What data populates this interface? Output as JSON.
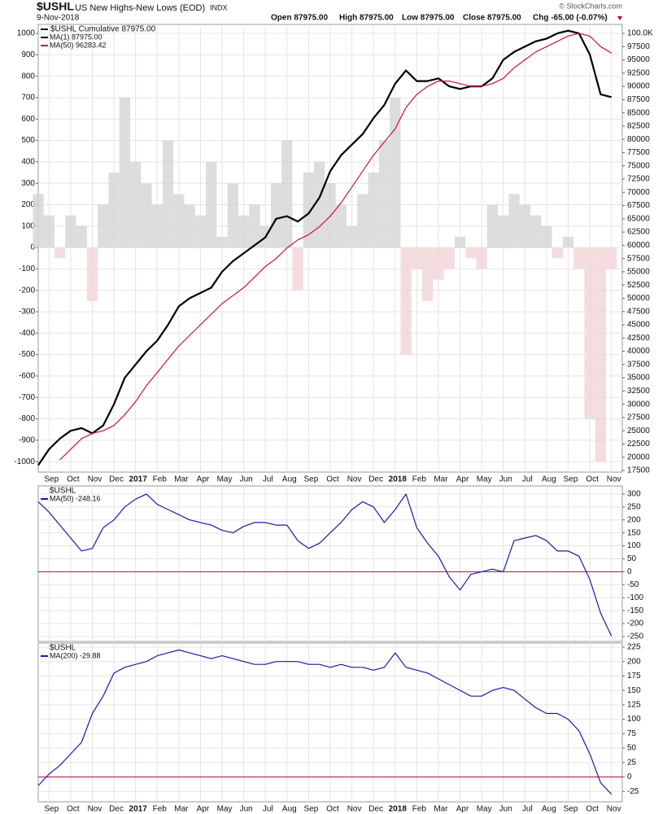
{
  "header": {
    "symbol": "$USHL",
    "name": "US New Highs-New Lows (EOD)",
    "exchange": "INDX",
    "date": "9-Nov-2018",
    "open": "Open 87975.00",
    "high": "High 87975.00",
    "low": "Low 87975.00",
    "close": "Close 87975.00",
    "change": "Chg -65.00 (-0.07%)",
    "source": "© StockCharts.com"
  },
  "chart_data": [
    {
      "type": "line",
      "label": "$USHL Cumulative 87975.00",
      "categories": [
        null,
        "Sep",
        null,
        "Oct",
        null,
        "Nov",
        null,
        "Dec",
        null,
        "2017",
        null,
        "Feb",
        null,
        "Mar",
        null,
        "Apr",
        null,
        "May",
        null,
        "Jun",
        null,
        "Jul",
        null,
        "Aug",
        null,
        "Sep",
        null,
        "Oct",
        null,
        "Nov",
        null,
        "Dec",
        null,
        "2018",
        null,
        "Feb",
        null,
        "Mar",
        null,
        "Apr",
        null,
        "May",
        null,
        "Jun",
        null,
        "Jul",
        null,
        "Aug",
        null,
        "Sep",
        null,
        "Oct",
        null,
        "Nov",
        null
      ],
      "histogram": {
        "color": "#d4d4d4",
        "negative_color": "#f3d3d6",
        "values": [
          250,
          150,
          -50,
          150,
          100,
          -250,
          200,
          350,
          700,
          400,
          300,
          200,
          500,
          250,
          200,
          150,
          400,
          50,
          300,
          150,
          200,
          100,
          300,
          500,
          -200,
          350,
          400,
          300,
          200,
          100,
          250,
          350,
          500,
          700,
          -500,
          -100,
          -250,
          -150,
          -100,
          50,
          -50,
          -100,
          200,
          150,
          250,
          200,
          150,
          100,
          -50,
          50,
          -100,
          -800,
          -1000,
          -100,
          null
        ]
      },
      "series": [
        {
          "name": "MA(1) 87975.00",
          "color": "#000000",
          "axis": "y2",
          "width": 2.2,
          "values": [
            18500,
            21500,
            23500,
            25000,
            25500,
            24500,
            26000,
            30000,
            35000,
            37500,
            40000,
            42000,
            45000,
            48500,
            50000,
            51000,
            52000,
            55000,
            57000,
            58500,
            60000,
            61500,
            65000,
            65500,
            64500,
            66000,
            69000,
            74000,
            77000,
            79000,
            81000,
            84000,
            86500,
            90500,
            93000,
            91000,
            91000,
            91500,
            90000,
            89500,
            90000,
            90000,
            91500,
            95000,
            96500,
            97500,
            98500,
            99000,
            100000,
            100500,
            100000,
            96000,
            88500,
            87975,
            null
          ]
        },
        {
          "name": "MA(50) 96283.42",
          "color": "#d0103a",
          "axis": "y2",
          "width": 1.2,
          "values": [
            null,
            null,
            19500,
            21500,
            23500,
            24500,
            25000,
            26000,
            28000,
            30500,
            33500,
            36000,
            38500,
            41000,
            43000,
            45000,
            47000,
            49000,
            50500,
            52000,
            54000,
            56000,
            57500,
            59500,
            61000,
            62000,
            63500,
            65500,
            68000,
            71000,
            74000,
            77000,
            79500,
            82000,
            86000,
            88500,
            90000,
            91000,
            91000,
            90500,
            90000,
            90000,
            90500,
            91500,
            93500,
            95000,
            96500,
            97500,
            98500,
            99500,
            100000,
            99500,
            97500,
            96283.42,
            null
          ]
        }
      ],
      "ylim": [
        -1049,
        1042
      ],
      "yticks": [
        -1000,
        -900,
        -800,
        -700,
        -600,
        -500,
        -400,
        -300,
        -200,
        -100,
        0,
        100,
        200,
        300,
        400,
        500,
        600,
        700,
        800,
        900,
        1000
      ],
      "y2lim": [
        17190,
        101690
      ],
      "y2ticks": [
        17500,
        20000,
        22500,
        25000,
        27500,
        30000,
        32500,
        35000,
        37500,
        40000,
        42500,
        45000,
        47500,
        50000,
        52500,
        55000,
        57500,
        60000,
        62500,
        65000,
        67500,
        70000,
        72500,
        75000,
        77500,
        80000,
        82500,
        85000,
        87500,
        90000,
        92500,
        95000,
        97500,
        {
          "value": 100000,
          "label": "100.0K"
        }
      ],
      "grid": true
    },
    {
      "type": "line",
      "label": "$USHL",
      "y_axis_position": "right",
      "hline": 0,
      "hline_color": "#b0103a",
      "series": [
        {
          "name": "MA(50) -248.16",
          "color": "#1a1aa6",
          "width": 1.2,
          "values": [
            270,
            230,
            180,
            130,
            80,
            90,
            170,
            200,
            250,
            280,
            300,
            260,
            240,
            220,
            200,
            190,
            180,
            160,
            150,
            175,
            190,
            190,
            180,
            180,
            120,
            90,
            110,
            150,
            190,
            240,
            270,
            250,
            190,
            240,
            300,
            170,
            110,
            60,
            -20,
            -70,
            -10,
            0,
            10,
            0,
            120,
            130,
            140,
            120,
            80,
            80,
            60,
            -30,
            -160,
            -248.16,
            null
          ]
        }
      ],
      "ylim": [
        -269,
        331
      ],
      "yticks": [
        -250,
        -200,
        -150,
        -100,
        -50,
        0,
        50,
        100,
        150,
        200,
        250,
        300
      ],
      "grid": true
    },
    {
      "type": "line",
      "label": "$USHL",
      "y_axis_position": "right",
      "hline": 0,
      "hline_color": "#b0103a",
      "categories": [
        null,
        "Sep",
        null,
        "Oct",
        null,
        "Nov",
        null,
        "Dec",
        null,
        "2017",
        null,
        "Feb",
        null,
        "Mar",
        null,
        "Apr",
        null,
        "May",
        null,
        "Jun",
        null,
        "Jul",
        null,
        "Aug",
        null,
        "Sep",
        null,
        "Oct",
        null,
        "Nov",
        null,
        "Dec",
        null,
        "2018",
        null,
        "Feb",
        null,
        "Mar",
        null,
        "Apr",
        null,
        "May",
        null,
        "Jun",
        null,
        "Jul",
        null,
        "Aug",
        null,
        "Sep",
        null,
        "Oct",
        null,
        "Nov",
        null
      ],
      "series": [
        {
          "name": "MA(200) -29.88",
          "color": "#1a1aa6",
          "width": 1.2,
          "values": [
            -15,
            5,
            20,
            40,
            60,
            110,
            140,
            180,
            190,
            195,
            200,
            210,
            215,
            220,
            215,
            210,
            205,
            210,
            205,
            200,
            195,
            195,
            200,
            200,
            200,
            195,
            195,
            190,
            195,
            190,
            190,
            185,
            190,
            215,
            190,
            185,
            180,
            170,
            160,
            150,
            140,
            140,
            150,
            155,
            150,
            135,
            120,
            110,
            110,
            100,
            80,
            40,
            -10,
            -29.88,
            null
          ]
        }
      ],
      "ylim": [
        -43,
        232
      ],
      "yticks": [
        -25,
        0,
        25,
        50,
        75,
        100,
        125,
        150,
        175,
        200,
        225
      ],
      "grid": true
    }
  ]
}
